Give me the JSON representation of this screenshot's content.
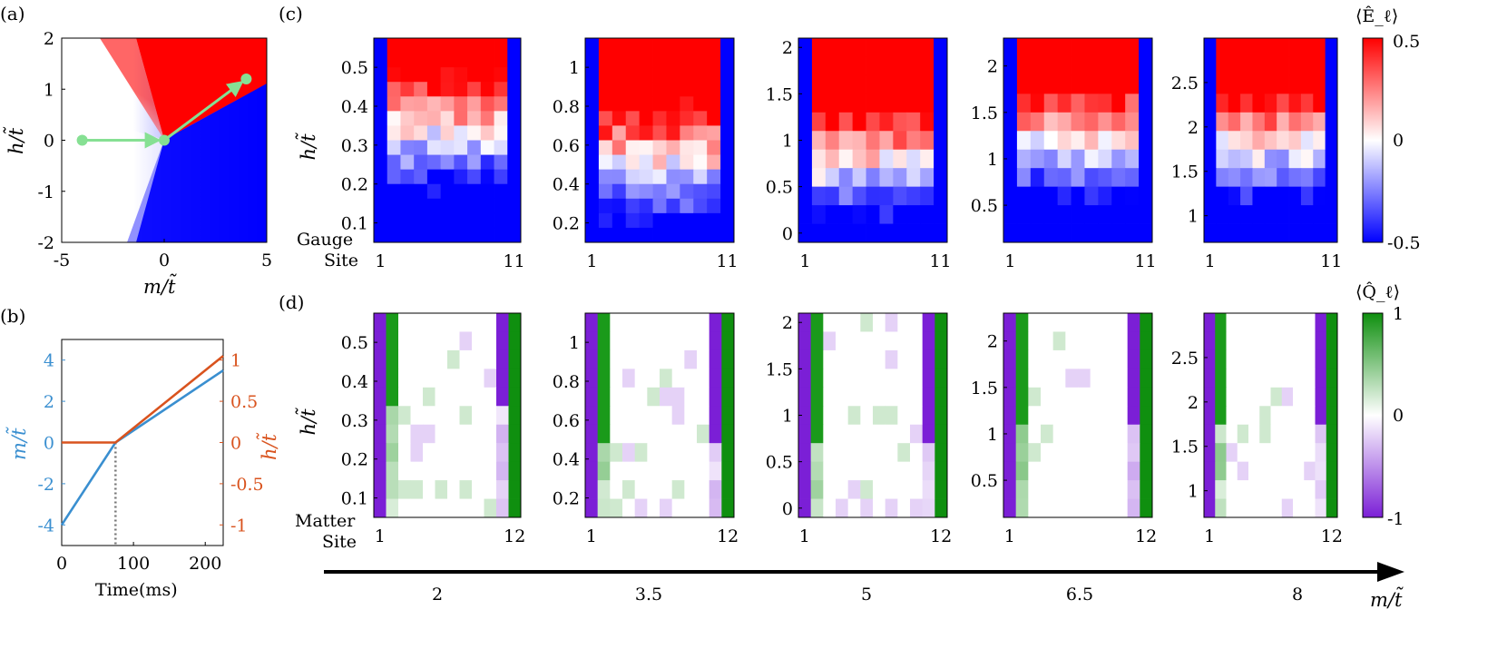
{
  "panels": {
    "a": {
      "label": "(a)",
      "chart_data": {
        "type": "heatmap",
        "xlabel": "m/t̃",
        "ylabel": "h/t̃",
        "xlim": [
          -5,
          5
        ],
        "ylim": [
          -2,
          2
        ],
        "xticks": [
          "-5",
          "0",
          "5"
        ],
        "yticks": [
          "2",
          "1",
          "0",
          "-1",
          "-2"
        ],
        "path": [
          {
            "x": -4,
            "y": 0
          },
          {
            "x": 0,
            "y": 0
          },
          {
            "x": 4,
            "y": 1.2
          }
        ],
        "path_color": "#86e093"
      }
    },
    "b": {
      "label": "(b)",
      "chart_data": {
        "type": "line",
        "xlabel": "Time(ms)",
        "xlim": [
          0,
          225
        ],
        "xticks": [
          "0",
          "100",
          "200"
        ],
        "left_axis": {
          "label": "m/t̃",
          "color": "#3a8fd0",
          "ylim": [
            -5,
            5
          ],
          "yticks": [
            "4",
            "2",
            "0",
            "-2",
            "-4"
          ]
        },
        "right_axis": {
          "label": "h/t̃",
          "color": "#d9531e",
          "ylim": [
            -1.25,
            1.25
          ],
          "yticks": [
            "1",
            "0.5",
            "0",
            "-0.5",
            "-1"
          ]
        },
        "series": [
          {
            "name": "m/t̃",
            "axis": "left",
            "x": [
              0,
              75,
              225
            ],
            "y": [
              -4,
              0,
              3.5
            ]
          },
          {
            "name": "h/t̃",
            "axis": "right",
            "x": [
              0,
              75,
              225
            ],
            "y": [
              0,
              0,
              1.05
            ]
          }
        ],
        "vline_x": 75
      }
    },
    "c": {
      "label": "(c)",
      "ylabel": "h/t̃",
      "row_label_1": "Gauge",
      "row_label_2": "Site",
      "xticks": [
        "1",
        "11"
      ],
      "colorbar": {
        "title": "⟨Ê_ℓ⟩",
        "ticks": [
          "0.5",
          "0",
          "-0.5"
        ],
        "range": [
          -0.5,
          0.5
        ],
        "colors": [
          "#0000ff",
          "#ffffff",
          "#ff0000"
        ]
      },
      "chart_data": [
        {
          "type": "heatmap",
          "m": "2",
          "yrange": [
            0.05,
            0.575
          ],
          "yticks": [
            "0.5",
            "0.4",
            "0.3",
            "0.2",
            "0.1"
          ],
          "rows": 14,
          "cols": 11,
          "transition_h": 0.33
        },
        {
          "type": "heatmap",
          "m": "3.5",
          "yrange": [
            0.1,
            1.15
          ],
          "yticks": [
            "1",
            "0.8",
            "0.6",
            "0.4",
            "0.2"
          ],
          "rows": 14,
          "cols": 11,
          "transition_h": 0.5
        },
        {
          "type": "heatmap",
          "m": "5",
          "yrange": [
            -0.1,
            2.1
          ],
          "yticks": [
            "2",
            "1.5",
            "1",
            "0.5",
            "0"
          ],
          "rows": 11,
          "cols": 11,
          "transition_h": 0.72
        },
        {
          "type": "heatmap",
          "m": "6.5",
          "yrange": [
            0.1,
            2.3
          ],
          "yticks": [
            "2",
            "1.5",
            "1",
            "0.5"
          ],
          "rows": 11,
          "cols": 11,
          "transition_h": 1.15
        },
        {
          "type": "heatmap",
          "m": "8",
          "yrange": [
            0.7,
            3.0
          ],
          "yticks": [
            "2.5",
            "2",
            "1.5",
            "1"
          ],
          "rows": 11,
          "cols": 11,
          "transition_h": 1.75
        }
      ]
    },
    "d": {
      "label": "(d)",
      "ylabel": "h/t̃",
      "row_label_1": "Matter",
      "row_label_2": "Site",
      "xticks": [
        "1",
        "12"
      ],
      "colorbar": {
        "title": "⟨Q̂_ℓ⟩",
        "ticks": [
          "1",
          "0",
          "-1"
        ],
        "range": [
          -1,
          1
        ],
        "colors": [
          "#7b1fd6",
          "#ffffff",
          "#0f8f0f"
        ]
      },
      "chart_data": [
        {
          "type": "heatmap",
          "m": "2",
          "yrange": [
            0.05,
            0.575
          ],
          "yticks": [
            "0.5",
            "0.4",
            "0.3",
            "0.2",
            "0.1"
          ],
          "rows": 11,
          "cols": 12,
          "transition_h": 0.33
        },
        {
          "type": "heatmap",
          "m": "3.5",
          "yrange": [
            0.1,
            1.15
          ],
          "yticks": [
            "1",
            "0.8",
            "0.6",
            "0.4",
            "0.2"
          ],
          "rows": 11,
          "cols": 12,
          "transition_h": 0.5
        },
        {
          "type": "heatmap",
          "m": "5",
          "yrange": [
            -0.1,
            2.1
          ],
          "yticks": [
            "2",
            "1.5",
            "1",
            "0.5",
            "0"
          ],
          "rows": 11,
          "cols": 12,
          "transition_h": 0.72
        },
        {
          "type": "heatmap",
          "m": "6.5",
          "yrange": [
            0.1,
            2.3
          ],
          "yticks": [
            "2",
            "1.5",
            "1",
            "0.5"
          ],
          "rows": 11,
          "cols": 12,
          "transition_h": 1.15
        },
        {
          "type": "heatmap",
          "m": "8",
          "yrange": [
            0.7,
            3.0
          ],
          "yticks": [
            "2.5",
            "2",
            "1.5",
            "1"
          ],
          "rows": 11,
          "cols": 12,
          "transition_h": 1.75
        }
      ]
    }
  },
  "bottom_axis": {
    "label": "m/t̃",
    "ticks": [
      "2",
      "3.5",
      "5",
      "6.5",
      "8"
    ]
  }
}
